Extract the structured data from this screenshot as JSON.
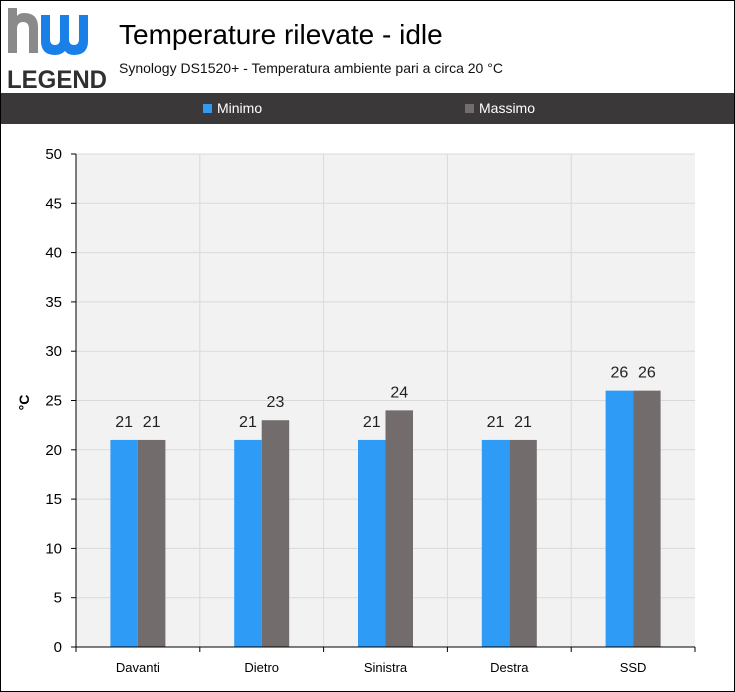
{
  "logo": {
    "text_top": "hw",
    "text_bottom": "LEGEND",
    "icon": "hwlegend-logo"
  },
  "header": {
    "title": "Temperature rilevate - idle",
    "subtitle": "Synology DS1520+ - Temperatura ambiente pari a circa 20 °C"
  },
  "colors": {
    "minimo": "#2e9cf7",
    "massimo": "#736c6c",
    "legend_bg": "#3a3838",
    "plot_bg": "#f2f2f2",
    "grid": "#d9d9d9"
  },
  "chart_data": {
    "type": "bar",
    "categories": [
      "Davanti",
      "Dietro",
      "Sinistra",
      "Destra",
      "SSD"
    ],
    "series": [
      {
        "name": "Minimo",
        "values": [
          21,
          21,
          21,
          21,
          26
        ]
      },
      {
        "name": "Massimo",
        "values": [
          21,
          23,
          24,
          21,
          26
        ]
      }
    ],
    "ylabel": "°C",
    "ylim": [
      0,
      50
    ],
    "yticks": [
      0,
      5,
      10,
      15,
      20,
      25,
      30,
      35,
      40,
      45,
      50
    ],
    "grid": true,
    "legend_position": "top",
    "data_labels": true
  }
}
